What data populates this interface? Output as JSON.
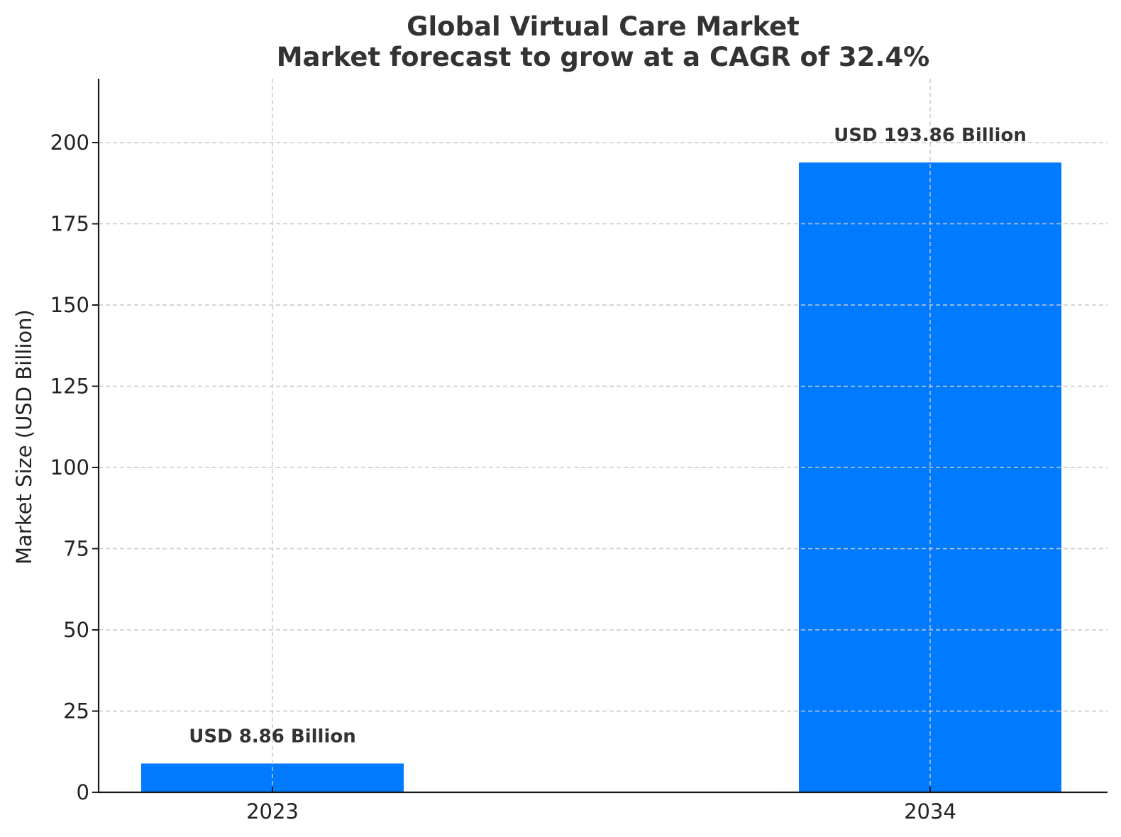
{
  "chart_data": {
    "type": "bar",
    "title": "Global Virtual Care Market",
    "subtitle": "Market forecast to grow at a CAGR of 32.4%",
    "xlabel": "",
    "ylabel": "Market Size (USD Billion)",
    "categories": [
      "2023",
      "2034"
    ],
    "values": [
      8.86,
      193.86
    ],
    "data_labels": [
      "USD 8.86 Billion",
      "USD 193.86 Billion"
    ],
    "ylim": [
      0,
      220
    ],
    "yticks": [
      0,
      25,
      50,
      75,
      100,
      125,
      150,
      175,
      200
    ],
    "grid": true,
    "legend": null,
    "colors": {
      "bar": "#007bff",
      "text": "#333333"
    }
  },
  "title": {
    "line1": "Global Virtual Care Market",
    "line2": "Market forecast to grow at a CAGR of 32.4%"
  },
  "axes": {
    "ylabel": "Market Size (USD Billion)",
    "yticks": [
      "0",
      "25",
      "50",
      "75",
      "100",
      "125",
      "150",
      "175",
      "200"
    ],
    "xticks": [
      "2023",
      "2034"
    ]
  },
  "bars": [
    {
      "category": "2023",
      "value": 8.86,
      "label": "USD 8.86 Billion"
    },
    {
      "category": "2034",
      "value": 193.86,
      "label": "USD 193.86 Billion"
    }
  ]
}
